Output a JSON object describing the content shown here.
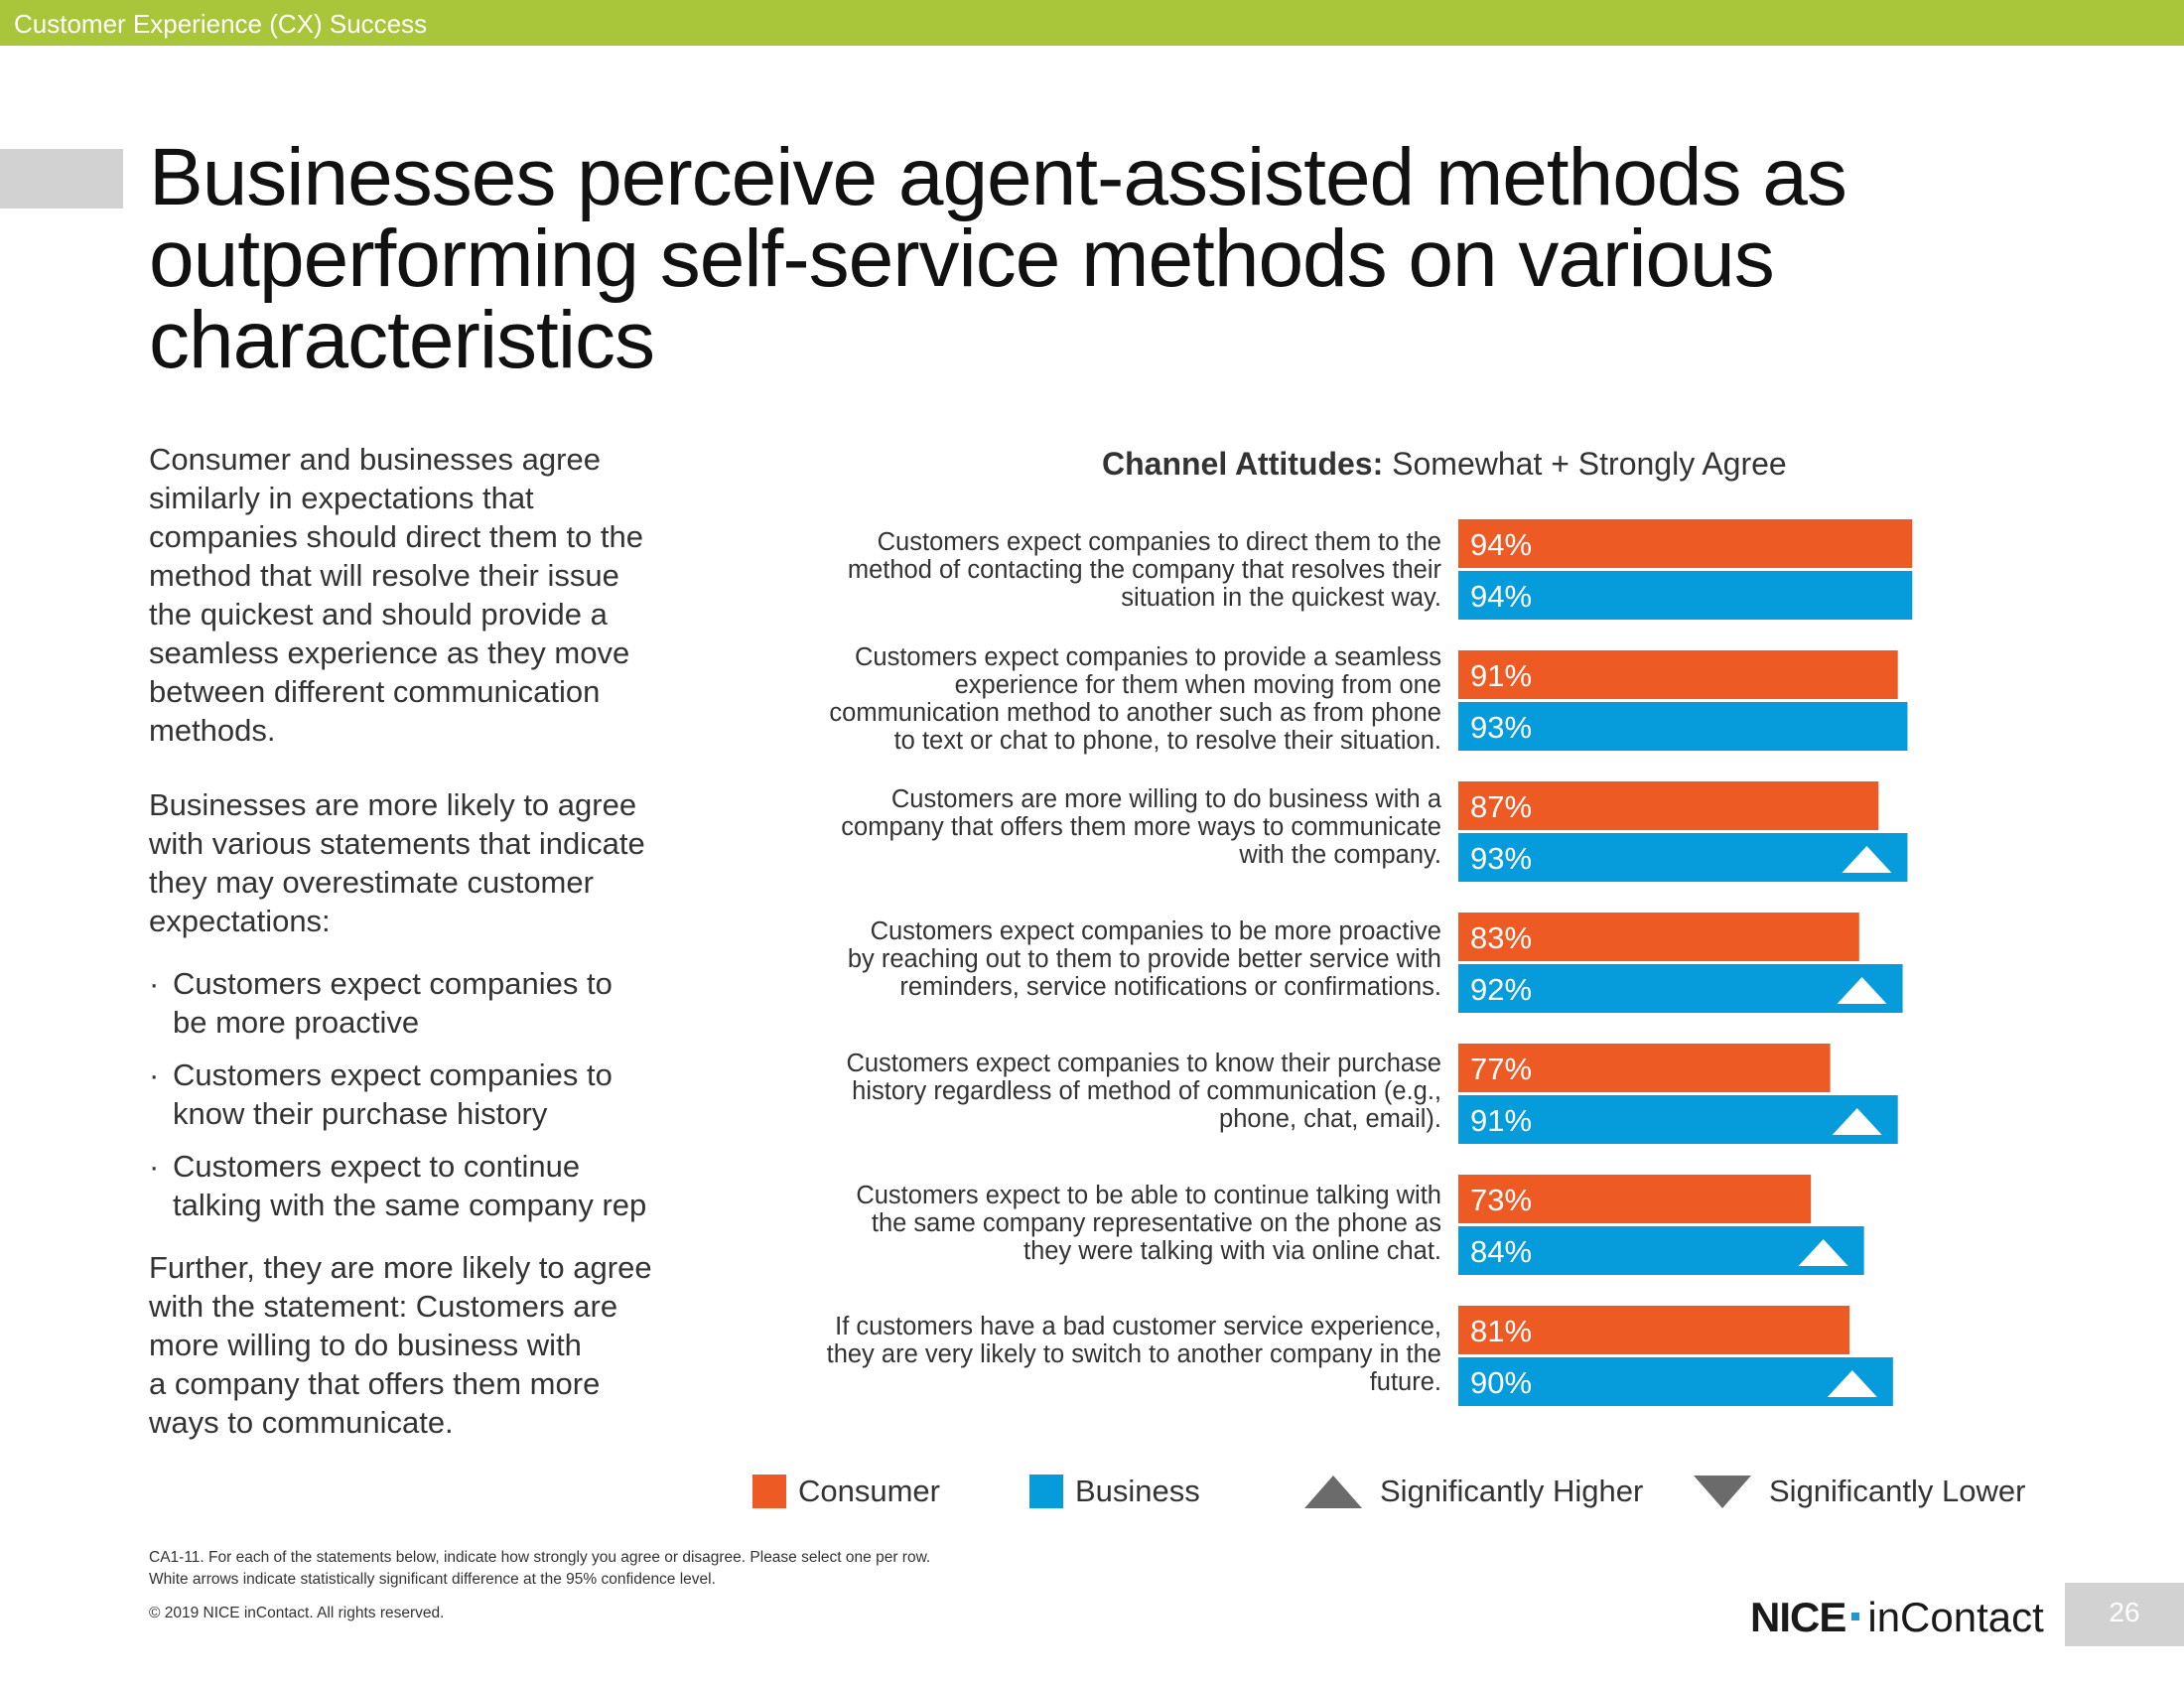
{
  "header": {
    "section": "Customer Experience (CX) Success"
  },
  "title": {
    "lines": [
      "Businesses perceive agent-assisted methods as",
      "outperforming self-service methods on various",
      "characteristics"
    ]
  },
  "left_text": {
    "p1": [
      "Consumer and businesses agree",
      "similarly in expectations that",
      "companies should direct them to the",
      "method that will resolve their issue",
      "the quickest and should provide a",
      "seamless experience as they move",
      "between different communication",
      "methods."
    ],
    "p2": [
      "Businesses are more likely to agree",
      "with various statements that indicate",
      "they may overestimate customer",
      "expectations:"
    ],
    "bullets": [
      [
        "Customers expect companies to",
        "be more proactive"
      ],
      [
        "Customers expect companies to",
        "know their purchase history"
      ],
      [
        "Customers expect to continue",
        "talking with the same company rep"
      ]
    ],
    "p3": [
      "Further, they are more likely to agree",
      "with the statement: Customers are",
      "more willing to do business with",
      "a company that offers them more",
      "ways to communicate."
    ]
  },
  "chart_data": {
    "type": "bar",
    "orientation": "horizontal",
    "title_bold": "Channel Attitudes:",
    "title_rest": " Somewhat + Strongly Agree",
    "categories": [
      [
        "Customers expect companies to direct them to the",
        "method of contacting the company that resolves their",
        "situation in the quickest way."
      ],
      [
        "Customers expect companies to provide a seamless",
        "experience for them when moving from one",
        "communication method to another such as from phone",
        "to text or chat to phone, to resolve their situation."
      ],
      [
        "Customers are more willing to do business with a",
        "company that offers them more ways to communicate",
        "with the company."
      ],
      [
        "Customers expect companies to be more proactive",
        "by reaching out to them to provide better service with",
        "reminders, service notifications or confirmations."
      ],
      [
        "Customers expect companies to know their purchase",
        "history regardless of method of communication (e.g.,",
        "phone, chat, email)."
      ],
      [
        "Customers expect to be able to continue talking with",
        "the same company representative on the phone as",
        "they were talking with via online chat."
      ],
      [
        "If customers have a bad customer service experience,",
        "they are very likely to switch to another company in the",
        "future."
      ]
    ],
    "series": [
      {
        "name": "Consumer",
        "color": "#ee5a24",
        "values": [
          94,
          91,
          87,
          83,
          77,
          73,
          81
        ],
        "labels": [
          "94%",
          "91%",
          "87%",
          "83%",
          "77%",
          "73%",
          "81%"
        ]
      },
      {
        "name": "Business",
        "color": "#069cdb",
        "values": [
          94,
          93,
          93,
          92,
          91,
          84,
          90
        ],
        "labels": [
          "94%",
          "93%",
          "93%",
          "92%",
          "91%",
          "84%",
          "90%"
        ],
        "significantly_higher": [
          false,
          false,
          true,
          true,
          true,
          true,
          true
        ]
      }
    ],
    "xlim": [
      0,
      100
    ],
    "value_unit": "%"
  },
  "legend": {
    "consumer": "Consumer",
    "business": "Business",
    "higher": "Significantly Higher",
    "lower": "Significantly Lower",
    "arrow_color": "#6b6b6b"
  },
  "footer": {
    "note1": "CA1-11. For each of the statements below, indicate how strongly you agree or disagree. Please select one per row.",
    "note2": "White arrows indicate statistically significant difference at the 95% confidence level.",
    "copyright": "© 2019 NICE inContact. All rights reserved.",
    "logo_nice": "NICE",
    "logo_incontact": "inContact",
    "page_number": "26"
  }
}
